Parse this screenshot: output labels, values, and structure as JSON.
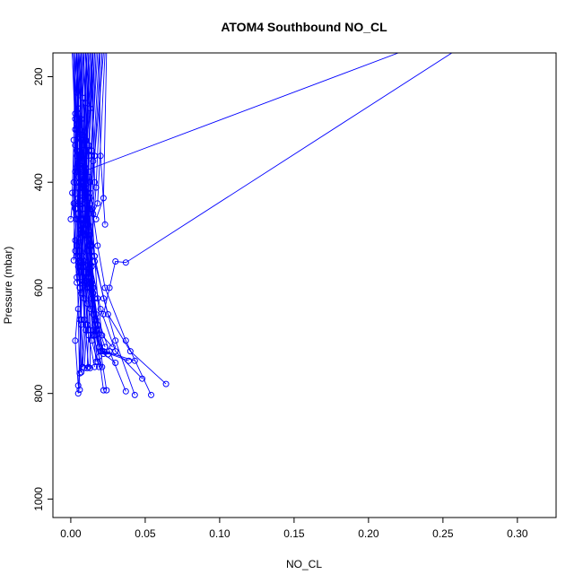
{
  "chart_data": {
    "type": "line",
    "title": "ATOM4 Southbound NO_CL",
    "xlabel": "NO_CL",
    "ylabel": "Pressure (mbar)",
    "xlim": [
      -0.012,
      0.326
    ],
    "ylim": [
      1035,
      155
    ],
    "y_reversed": true,
    "grid": false,
    "x_ticks": [
      0.0,
      0.05,
      0.1,
      0.15,
      0.2,
      0.25,
      0.3
    ],
    "x_tick_labels": [
      "0.00",
      "0.05",
      "0.10",
      "0.15",
      "0.20",
      "0.25",
      "0.30"
    ],
    "y_ticks": [
      200,
      400,
      600,
      800,
      1000
    ],
    "y_tick_labels": [
      "200",
      "400",
      "600",
      "800",
      "1000"
    ],
    "series_color": "#0000ff",
    "marker": "open-circle",
    "series": [
      {
        "x": [
          0.003,
          0.004,
          0.006,
          0.008,
          0.005,
          0.004,
          0.006,
          0.003,
          0.005
        ],
        "y": [
          155,
          230,
          300,
          380,
          440,
          520,
          600,
          700,
          785
        ]
      },
      {
        "x": [
          0.006,
          0.008,
          0.011,
          0.013,
          0.018,
          0.023,
          0.037,
          0.054
        ],
        "y": [
          155,
          240,
          330,
          420,
          520,
          600,
          700,
          803
        ]
      },
      {
        "x": [
          0.008,
          0.01,
          0.007,
          0.012,
          0.016,
          0.022,
          0.03,
          0.043
        ],
        "y": [
          155,
          250,
          350,
          450,
          540,
          620,
          700,
          803
        ]
      },
      {
        "x": [
          0.01,
          0.013,
          0.009,
          0.012,
          0.016,
          0.025,
          0.04,
          0.064
        ],
        "y": [
          155,
          260,
          370,
          460,
          550,
          650,
          720,
          782
        ]
      },
      {
        "x": [
          0.007,
          0.005,
          0.009,
          0.011,
          0.014,
          0.02,
          0.03,
          0.048
        ],
        "y": [
          155,
          270,
          380,
          470,
          560,
          640,
          720,
          772
        ]
      },
      {
        "x": [
          0.005,
          0.007,
          0.008,
          0.01,
          0.012,
          0.017,
          0.026,
          0.037
        ],
        "y": [
          155,
          280,
          390,
          480,
          570,
          650,
          720,
          796
        ]
      },
      {
        "x": [
          0.004,
          0.006,
          0.007,
          0.009,
          0.012,
          0.016,
          0.02,
          0.024
        ],
        "y": [
          155,
          300,
          400,
          500,
          580,
          660,
          720,
          794
        ]
      },
      {
        "x": [
          0.009,
          0.007,
          0.01,
          0.012,
          0.014,
          0.016,
          0.019,
          0.022
        ],
        "y": [
          155,
          310,
          410,
          500,
          590,
          670,
          730,
          794
        ]
      },
      {
        "x": [
          0.012,
          0.01,
          0.009,
          0.011,
          0.013,
          0.016,
          0.021,
          0.039
        ],
        "y": [
          155,
          320,
          420,
          500,
          590,
          670,
          720,
          738
        ]
      },
      {
        "x": [
          0.014,
          0.011,
          0.01,
          0.013,
          0.015,
          0.018,
          0.022,
          0.043
        ],
        "y": [
          155,
          330,
          430,
          500,
          600,
          670,
          720,
          738
        ]
      },
      {
        "x": [
          0.016,
          0.012,
          0.01,
          0.012,
          0.015,
          0.018,
          0.022,
          0.03
        ],
        "y": [
          155,
          340,
          440,
          520,
          610,
          680,
          725,
          742
        ]
      },
      {
        "x": [
          0.022,
          0.016,
          0.012,
          0.011,
          0.014,
          0.017,
          0.02,
          0.025
        ],
        "y": [
          155,
          350,
          450,
          530,
          620,
          690,
          720,
          726
        ]
      },
      {
        "x": [
          0.003,
          0.005,
          0.006,
          0.008,
          0.007,
          0.006,
          0.007
        ],
        "y": [
          155,
          260,
          360,
          460,
          560,
          660,
          760
        ]
      },
      {
        "x": [
          0.002,
          0.003,
          0.004,
          0.005,
          0.006,
          0.007,
          0.008
        ],
        "y": [
          155,
          270,
          370,
          470,
          570,
          670,
          750
        ]
      },
      {
        "x": [
          0.004,
          0.003,
          0.005,
          0.006,
          0.008,
          0.01,
          0.012
        ],
        "y": [
          155,
          280,
          380,
          480,
          580,
          680,
          750
        ]
      },
      {
        "x": [
          0.006,
          0.004,
          0.005,
          0.007,
          0.009,
          0.012,
          0.016
        ],
        "y": [
          155,
          290,
          390,
          490,
          590,
          690,
          750
        ]
      },
      {
        "x": [
          0.008,
          0.006,
          0.007,
          0.009,
          0.011,
          0.014,
          0.019
        ],
        "y": [
          155,
          300,
          400,
          500,
          600,
          700,
          750
        ]
      },
      {
        "x": [
          0.011,
          0.008,
          0.009,
          0.01,
          0.012,
          0.015,
          0.021
        ],
        "y": [
          155,
          310,
          410,
          500,
          600,
          690,
          750
        ]
      },
      {
        "x": [
          0.013,
          0.01,
          0.011,
          0.012,
          0.014,
          0.016,
          0.018
        ],
        "y": [
          155,
          320,
          420,
          510,
          610,
          690,
          740
        ]
      },
      {
        "x": [
          0.015,
          0.012,
          0.012,
          0.013,
          0.015,
          0.017,
          0.019
        ],
        "y": [
          155,
          330,
          430,
          520,
          610,
          680,
          712
        ]
      },
      {
        "x": [
          0.018,
          0.014,
          0.013,
          0.014,
          0.016,
          0.019,
          0.023
        ],
        "y": [
          155,
          340,
          440,
          530,
          620,
          680,
          712
        ]
      },
      {
        "x": [
          0.02,
          0.016,
          0.014,
          0.016,
          0.018,
          0.021,
          0.028
        ],
        "y": [
          155,
          350,
          450,
          540,
          620,
          690,
          712
        ]
      },
      {
        "x": [
          0.002,
          0.004,
          0.006,
          0.004,
          0.005,
          0.006
        ],
        "y": [
          155,
          280,
          400,
          520,
          640,
          793
        ]
      },
      {
        "x": [
          0.003,
          0.005,
          0.004,
          0.006,
          0.007,
          0.005
        ],
        "y": [
          155,
          290,
          410,
          530,
          660,
          800
        ]
      },
      {
        "x": [
          0.005,
          0.004,
          0.006,
          0.008,
          0.007,
          0.006
        ],
        "y": [
          155,
          300,
          420,
          540,
          660,
          762
        ]
      },
      {
        "x": [
          0.007,
          0.006,
          0.005,
          0.007,
          0.009,
          0.007
        ],
        "y": [
          155,
          310,
          430,
          550,
          660,
          760
        ]
      },
      {
        "x": [
          0.009,
          0.007,
          0.006,
          0.008,
          0.01,
          0.008
        ],
        "y": [
          155,
          320,
          440,
          560,
          670,
          750
        ]
      },
      {
        "x": [
          0.011,
          0.009,
          0.008,
          0.009,
          0.011,
          0.009
        ],
        "y": [
          155,
          330,
          450,
          570,
          670,
          752
        ]
      },
      {
        "x": [
          0.013,
          0.01,
          0.009,
          0.01,
          0.012,
          0.011
        ],
        "y": [
          155,
          340,
          460,
          580,
          680,
          752
        ]
      },
      {
        "x": [
          0.015,
          0.012,
          0.01,
          0.011,
          0.013,
          0.013
        ],
        "y": [
          155,
          350,
          470,
          590,
          680,
          752
        ]
      },
      {
        "x": [
          0.019,
          0.015,
          0.012,
          0.013,
          0.015,
          0.017
        ],
        "y": [
          155,
          360,
          480,
          600,
          680,
          740
        ]
      },
      {
        "x": [
          0.001,
          0.003,
          0.002,
          0.004,
          0.005
        ],
        "y": [
          155,
          300,
          400,
          470,
          560
        ]
      },
      {
        "x": [
          0.003,
          0.002,
          0.001,
          0.003,
          0.004
        ],
        "y": [
          155,
          320,
          420,
          510,
          580
        ]
      },
      {
        "x": [
          0.004,
          0.003,
          0.002,
          0.003,
          0.004
        ],
        "y": [
          155,
          330,
          440,
          530,
          590
        ]
      },
      {
        "x": [
          0.006,
          0.004,
          0.003,
          0.004,
          0.006
        ],
        "y": [
          155,
          340,
          450,
          540,
          600
        ]
      },
      {
        "x": [
          0.008,
          0.006,
          0.005,
          0.005,
          0.007
        ],
        "y": [
          155,
          350,
          460,
          550,
          610
        ]
      },
      {
        "x": [
          0.009,
          0.007,
          0.006,
          0.007,
          0.009
        ],
        "y": [
          155,
          360,
          470,
          560,
          620
        ]
      },
      {
        "x": [
          0.011,
          0.009,
          0.008,
          0.009,
          0.011
        ],
        "y": [
          155,
          370,
          480,
          570,
          630
        ]
      },
      {
        "x": [
          0.013,
          0.01,
          0.009,
          0.01,
          0.013
        ],
        "y": [
          155,
          380,
          490,
          580,
          640
        ]
      },
      {
        "x": [
          0.014,
          0.012,
          0.01,
          0.012,
          0.015
        ],
        "y": [
          155,
          390,
          500,
          590,
          650
        ]
      },
      {
        "x": [
          0.016,
          0.013,
          0.012,
          0.014,
          0.017
        ],
        "y": [
          155,
          400,
          510,
          600,
          660
        ]
      },
      {
        "x": [
          0.021,
          0.017,
          0.014,
          0.015,
          0.018
        ],
        "y": [
          155,
          410,
          520,
          610,
          670
        ]
      },
      {
        "x": [
          0.001,
          0.004,
          0.0
        ],
        "y": [
          155,
          350,
          470
        ]
      },
      {
        "x": [
          0.005,
          0.003,
          0.002
        ],
        "y": [
          155,
          380,
          548
        ]
      },
      {
        "x": [
          0.007,
          0.006,
          0.004
        ],
        "y": [
          155,
          400,
          520
        ]
      },
      {
        "x": [
          0.01,
          0.008,
          0.006
        ],
        "y": [
          155,
          410,
          505
        ]
      },
      {
        "x": [
          0.012,
          0.01,
          0.008
        ],
        "y": [
          155,
          420,
          495
        ]
      },
      {
        "x": [
          0.017,
          0.013,
          0.011
        ],
        "y": [
          155,
          430,
          480
        ]
      },
      {
        "x": [
          0.023,
          0.018,
          0.015
        ],
        "y": [
          155,
          440,
          460
        ]
      },
      {
        "x": [
          0.024,
          0.022,
          0.017
        ],
        "y": [
          155,
          430,
          470
        ]
      },
      {
        "x": [
          0.019,
          0.02,
          0.023
        ],
        "y": [
          155,
          350,
          480
        ]
      },
      {
        "x": [
          0.014,
          0.016,
          0.013
        ],
        "y": [
          155,
          400,
          555
        ]
      },
      {
        "x": [
          0.22,
          0.008,
          0.007,
          0.009,
          0.015
        ],
        "y": [
          155,
          380,
          470,
          550,
          600
        ]
      },
      {
        "x": [
          0.256,
          0.037,
          0.03,
          0.026,
          0.022
        ],
        "y": [
          155,
          552,
          550,
          600,
          650
        ]
      }
    ]
  }
}
